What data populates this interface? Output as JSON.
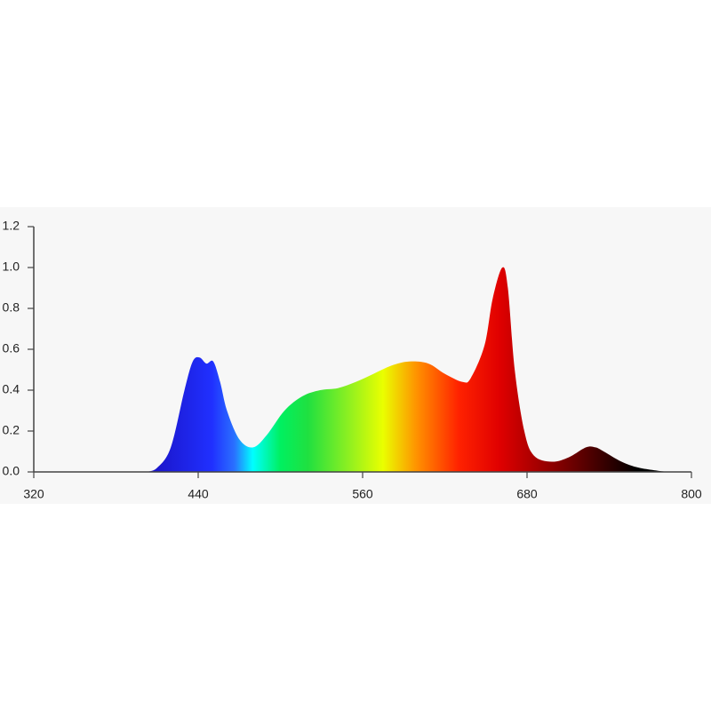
{
  "chart_data": {
    "type": "area",
    "x": [
      402,
      410,
      420,
      430,
      436,
      441,
      446,
      451,
      456,
      461,
      470,
      480,
      490,
      503,
      516,
      529,
      542,
      555,
      568,
      581,
      594,
      608,
      620,
      633,
      639,
      649,
      655,
      662,
      666,
      671,
      678,
      685,
      698,
      710,
      723,
      730,
      736,
      749,
      762,
      782
    ],
    "values": [
      0,
      0.02,
      0.12,
      0.4,
      0.54,
      0.56,
      0.53,
      0.54,
      0.44,
      0.3,
      0.16,
      0.12,
      0.18,
      0.3,
      0.37,
      0.4,
      0.41,
      0.44,
      0.48,
      0.52,
      0.54,
      0.53,
      0.48,
      0.44,
      0.46,
      0.62,
      0.85,
      1.0,
      0.9,
      0.5,
      0.2,
      0.08,
      0.05,
      0.07,
      0.12,
      0.12,
      0.1,
      0.05,
      0.02,
      0
    ],
    "xlim": [
      320,
      800
    ],
    "xticks": [
      320,
      440,
      560,
      680,
      800
    ],
    "ylim": [
      0,
      1.2
    ],
    "yticks": [
      {
        "value": 0,
        "label": "0.0"
      },
      0.2,
      0.4,
      0.6,
      0.8,
      {
        "value": 1,
        "label": "1.0"
      },
      1.2
    ],
    "grid": false
  }
}
